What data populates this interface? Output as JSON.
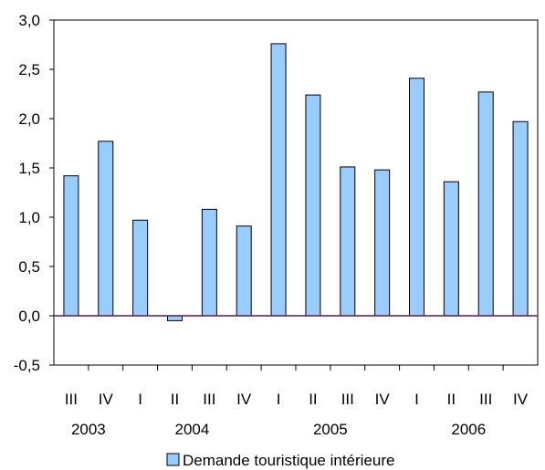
{
  "chart_data": {
    "type": "bar",
    "categories": [
      "III",
      "IV",
      "I",
      "II",
      "III",
      "IV",
      "I",
      "II",
      "III",
      "IV",
      "I",
      "II",
      "III",
      "IV"
    ],
    "years": [
      {
        "label": "2003",
        "start": 0,
        "end": 1
      },
      {
        "label": "2004",
        "start": 2,
        "end": 5
      },
      {
        "label": "2005",
        "start": 6,
        "end": 9
      },
      {
        "label": "2006",
        "start": 10,
        "end": 13
      }
    ],
    "series": [
      {
        "name": "Demande touristique intérieure",
        "color": "#99ccff",
        "values": [
          1.42,
          1.77,
          0.97,
          -0.05,
          1.08,
          0.91,
          2.76,
          2.24,
          1.51,
          1.48,
          2.41,
          1.36,
          2.27,
          1.97
        ]
      }
    ],
    "ylim": [
      -0.5,
      3.0
    ],
    "yticks": [
      "-0,5",
      "0,0",
      "0,5",
      "1,0",
      "1,5",
      "2,0",
      "2,5",
      "3,0"
    ],
    "ytick_values": [
      -0.5,
      0.0,
      0.5,
      1.0,
      1.5,
      2.0,
      2.5,
      3.0
    ],
    "legend_position": "bottom-center",
    "grid": false
  }
}
